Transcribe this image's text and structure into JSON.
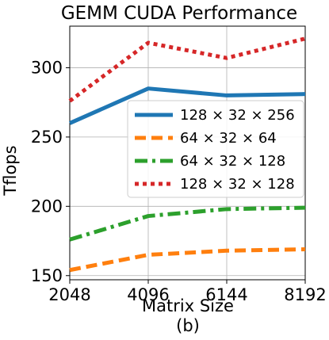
{
  "chart_data": {
    "type": "line",
    "title": "GEMM CUDA Performance",
    "xlabel": "Matrix Size",
    "ylabel": "Tflops",
    "caption": "(b)",
    "x": [
      2048,
      4096,
      6144,
      8192
    ],
    "xticks": [
      "2048",
      "4096",
      "6144",
      "8192"
    ],
    "yticks": [
      150,
      200,
      250,
      300
    ],
    "xlim": [
      2048,
      8192
    ],
    "ylim": [
      147,
      330
    ],
    "grid": true,
    "legend_position": "center-right",
    "series": [
      {
        "name": "128 × 32 × 256",
        "values": [
          260,
          285,
          280,
          281
        ],
        "color": "#1f77b4",
        "style": "solid"
      },
      {
        "name": "64 × 32 × 64",
        "values": [
          154,
          165,
          168,
          169
        ],
        "color": "#ff7f0e",
        "style": "dashed"
      },
      {
        "name": "64 × 32 × 128",
        "values": [
          176,
          193,
          198,
          199
        ],
        "color": "#2ca02c",
        "style": "dashdot"
      },
      {
        "name": "128 × 32 × 128",
        "values": [
          276,
          318,
          307,
          321
        ],
        "color": "#d62728",
        "style": "dotted"
      }
    ]
  }
}
